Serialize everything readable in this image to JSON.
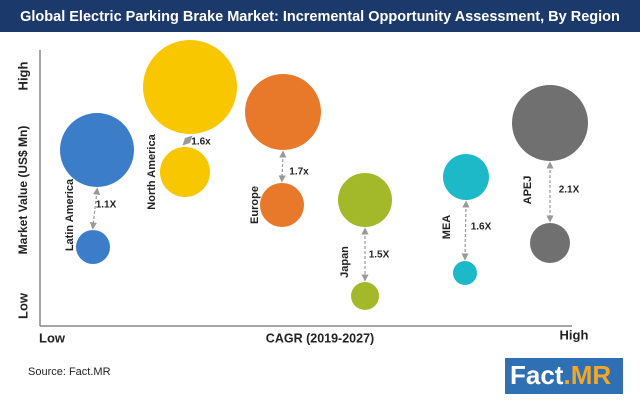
{
  "header": {
    "title": "Global Electric Parking Brake Market: Incremental Opportunity Assessment, By Region"
  },
  "axes": {
    "y_title": "Market Value (US$ Mn)",
    "y_high": "High",
    "y_low": "Low",
    "x_title": "CAGR (2019-2027)",
    "x_low": "Low",
    "x_high": "High"
  },
  "regions": [
    {
      "name": "Latin America",
      "multiplier": "1.1X",
      "color": "#3b7dc8"
    },
    {
      "name": "North America",
      "multiplier": "1.6x",
      "color": "#f8c700"
    },
    {
      "name": "Europe",
      "multiplier": "1.7x",
      "color": "#e8792a"
    },
    {
      "name": "Japan",
      "multiplier": "1.5X",
      "color": "#a3b92a"
    },
    {
      "name": "MEA",
      "multiplier": "1.6X",
      "color": "#1eb9c9"
    },
    {
      "name": "APEJ",
      "multiplier": "2.1X",
      "color": "#707070"
    }
  ],
  "footer": {
    "source": "Source: Fact.MR",
    "logo_main": "Fact",
    "logo_accent": ".MR"
  }
}
